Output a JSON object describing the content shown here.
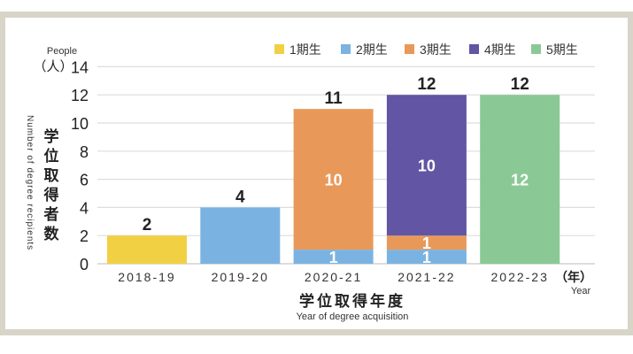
{
  "chart_data": {
    "type": "bar",
    "stacked": true,
    "categories": [
      "2018-19",
      "2019-20",
      "2020-21",
      "2021-22",
      "2022-23"
    ],
    "series": [
      {
        "name": "1期生",
        "color": "#f2d043",
        "values": [
          2,
          0,
          0,
          0,
          0
        ]
      },
      {
        "name": "2期生",
        "color": "#7ab3e2",
        "values": [
          0,
          4,
          1,
          1,
          0
        ]
      },
      {
        "name": "3期生",
        "color": "#e8995a",
        "values": [
          0,
          0,
          10,
          1,
          0
        ]
      },
      {
        "name": "4期生",
        "color": "#6255a3",
        "values": [
          0,
          0,
          0,
          10,
          0
        ]
      },
      {
        "name": "5期生",
        "color": "#8ac996",
        "values": [
          0,
          0,
          0,
          0,
          12
        ]
      }
    ],
    "segment_labels": [
      [],
      [],
      [
        "1",
        "10"
      ],
      [
        "1",
        "1",
        "10"
      ],
      [
        "12"
      ]
    ],
    "totals": [
      2,
      4,
      11,
      12,
      12
    ],
    "yticks": [
      0,
      2,
      4,
      6,
      8,
      10,
      12,
      14
    ],
    "ylim": [
      0,
      14
    ],
    "grid": true,
    "legend_position": "top-right",
    "ylabel_unit": "（人）",
    "ylabel_unit_en": "People",
    "ylabel": "学位取得者数",
    "ylabel_en": "Number of degree recipients",
    "xlabel": "学位取得年度",
    "xlabel_en": "Year of degree acquisition",
    "xlabel_unit": "（年）",
    "xlabel_unit_en": "Year"
  }
}
